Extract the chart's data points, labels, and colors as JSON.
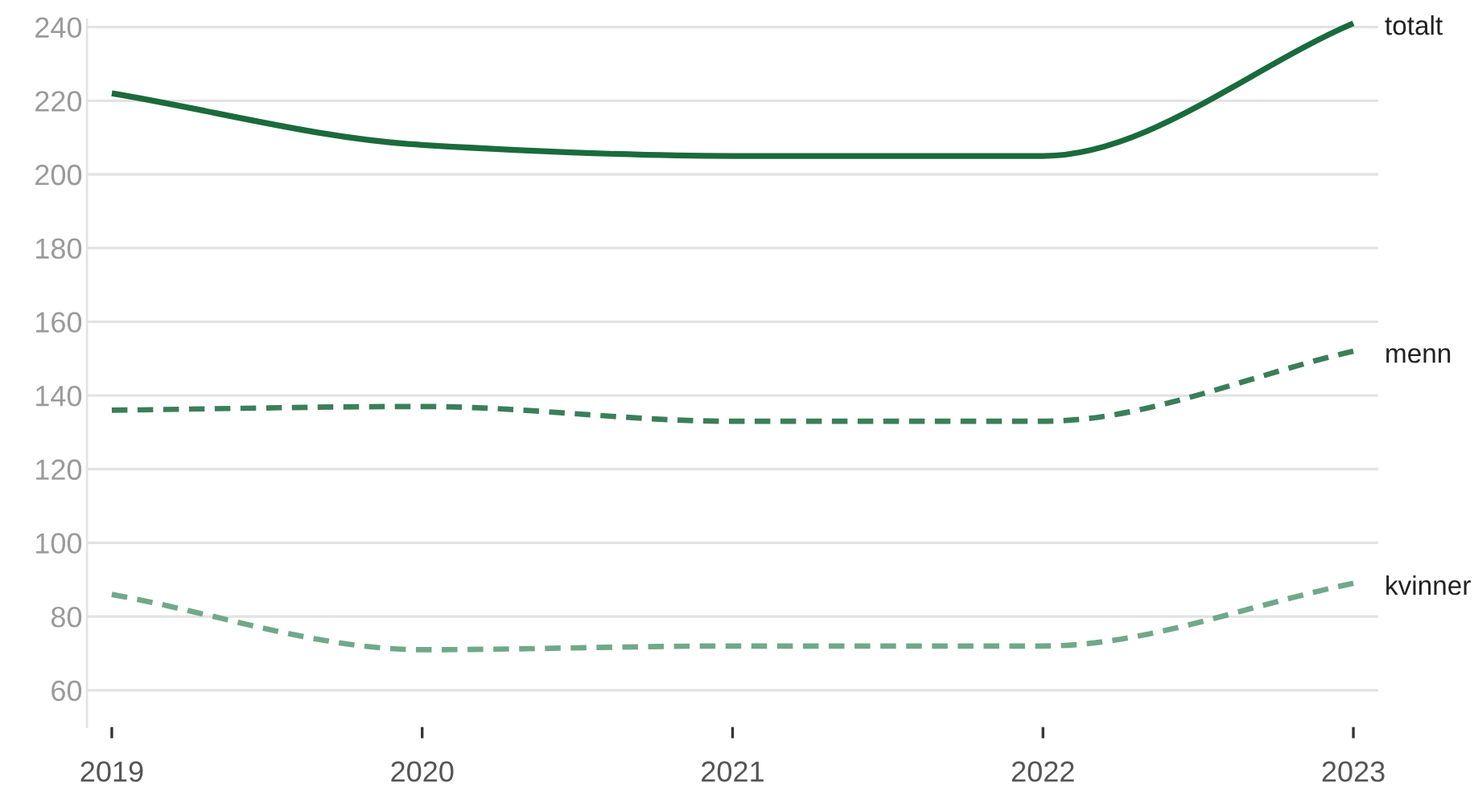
{
  "chart_data": {
    "type": "line",
    "x": [
      2019,
      2020,
      2021,
      2022,
      2023
    ],
    "series": [
      {
        "name": "totalt",
        "color": "#1a6b3c",
        "values": [
          222,
          208,
          205,
          205,
          241
        ],
        "line_style": "solid"
      },
      {
        "name": "menn",
        "color": "#3a7f59",
        "values": [
          136,
          137,
          133,
          133,
          152
        ],
        "line_style": "dashed"
      },
      {
        "name": "kvinner",
        "color": "#6fa98a",
        "values": [
          86,
          71,
          72,
          72,
          89
        ],
        "line_style": "dashed"
      }
    ],
    "xlim": [
      2018.92,
      2023.08
    ],
    "ylim": [
      50,
      242
    ],
    "xticks": [
      2019,
      2020,
      2021,
      2022,
      2023
    ],
    "yticks": [
      60,
      80,
      100,
      120,
      140,
      160,
      180,
      200,
      220,
      240
    ],
    "grid": "y",
    "legend": false,
    "marker": "none"
  }
}
